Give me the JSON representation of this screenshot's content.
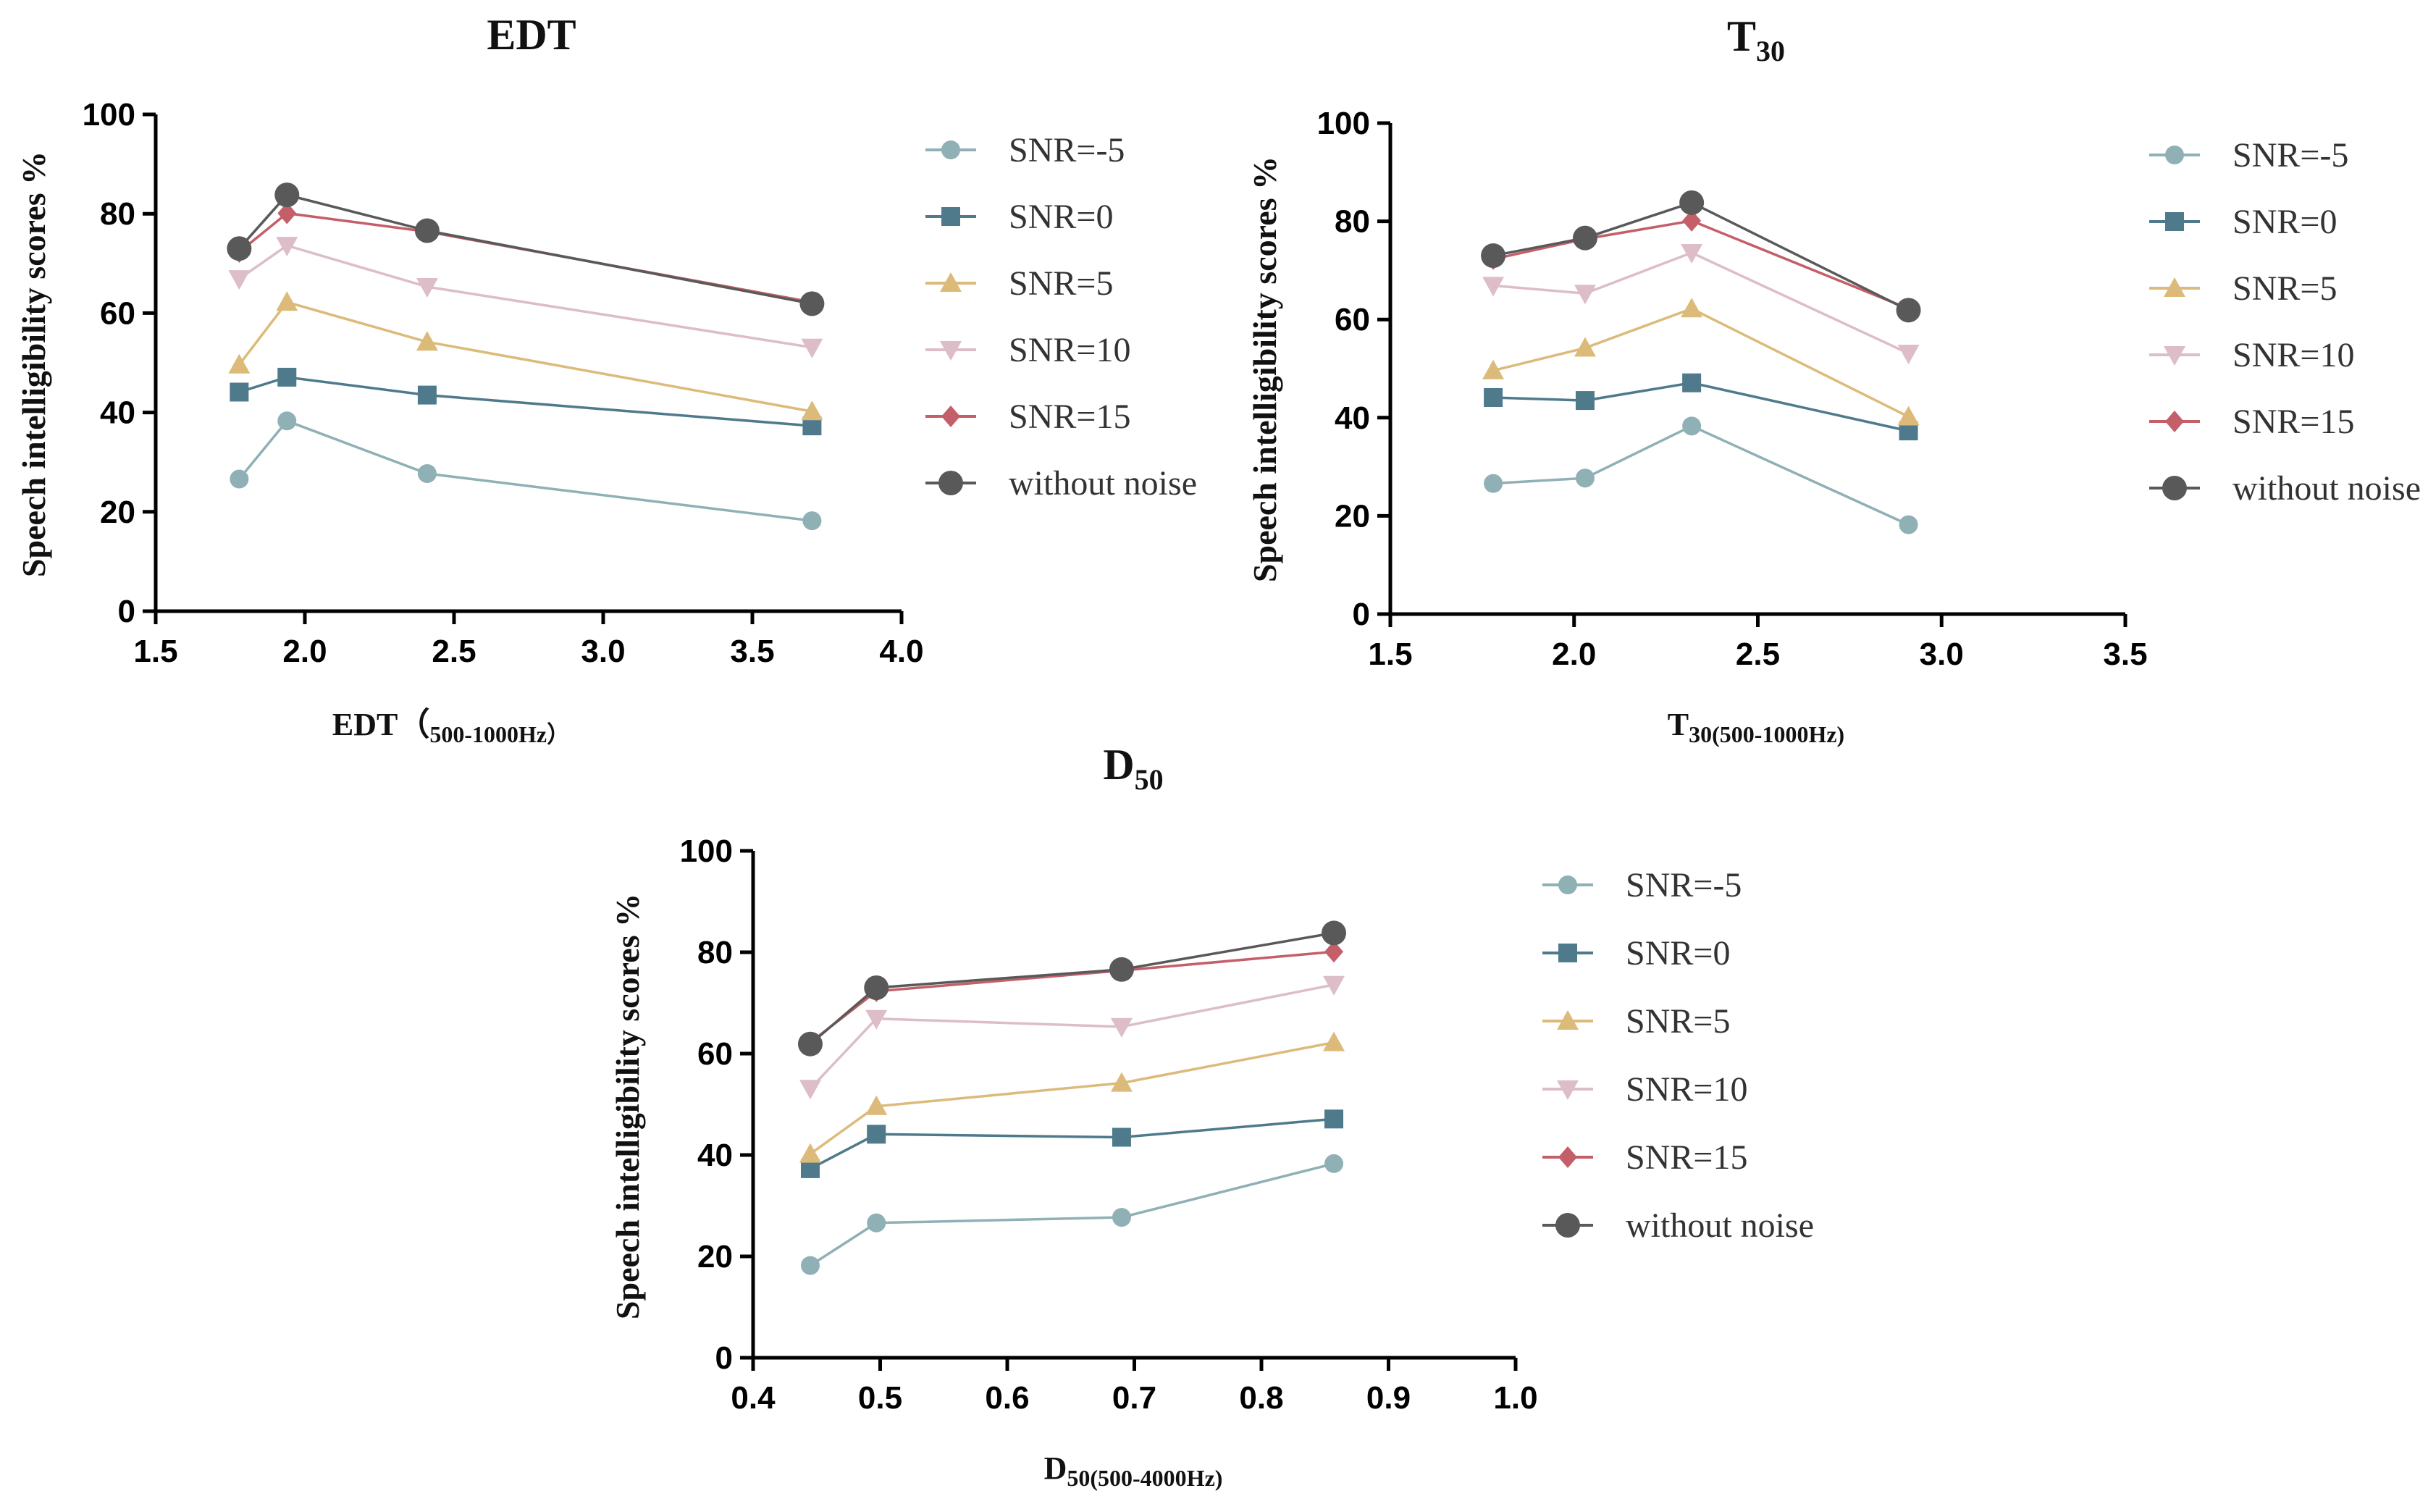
{
  "chart_data": [
    {
      "type": "line",
      "title": "EDT",
      "title_sub": "",
      "xlabel": "EDT（",
      "xlabel_sub": "500-1000Hz）",
      "ylabel": "Speech intelligibility scores %",
      "xlim": [
        1.5,
        4.0
      ],
      "ylim": [
        0,
        100
      ],
      "xticks": [
        "1.5",
        "2.0",
        "2.5",
        "3.0",
        "3.5",
        "4.0"
      ],
      "yticks": [
        "0",
        "20",
        "40",
        "60",
        "80",
        "100"
      ],
      "legend_position": "right",
      "x": [
        1.78,
        1.94,
        2.41,
        3.7
      ],
      "series": [
        {
          "name": "SNR=-5",
          "values": [
            26.6,
            38.3,
            27.7,
            18.2
          ]
        },
        {
          "name": "SNR=0",
          "values": [
            44.1,
            47.1,
            43.5,
            37.3
          ]
        },
        {
          "name": "SNR=5",
          "values": [
            49.6,
            62.2,
            54.2,
            40.2
          ]
        },
        {
          "name": "SNR=10",
          "values": [
            66.9,
            73.6,
            65.3,
            53.1
          ]
        },
        {
          "name": "SNR=15",
          "values": [
            72.3,
            80.1,
            76.4,
            62.2
          ]
        },
        {
          "name": "without noise",
          "values": [
            73.0,
            83.8,
            76.6,
            61.9
          ]
        }
      ]
    },
    {
      "type": "line",
      "title": "T",
      "title_sub": "30",
      "xlabel": "T",
      "xlabel_sub": "30(500-1000Hz)",
      "ylabel": "Speech intelligibility scores %",
      "xlim": [
        1.5,
        3.5
      ],
      "ylim": [
        0,
        100
      ],
      "xticks": [
        "1.5",
        "2.0",
        "2.5",
        "3.0",
        "3.5"
      ],
      "yticks": [
        "0",
        "20",
        "40",
        "60",
        "80",
        "100"
      ],
      "legend_position": "right",
      "x": [
        1.78,
        2.03,
        2.32,
        2.91
      ],
      "series": [
        {
          "name": "SNR=-5",
          "values": [
            26.6,
            27.7,
            38.3,
            18.2
          ]
        },
        {
          "name": "SNR=0",
          "values": [
            44.1,
            43.5,
            47.1,
            37.3
          ]
        },
        {
          "name": "SNR=5",
          "values": [
            49.6,
            54.2,
            62.2,
            40.2
          ]
        },
        {
          "name": "SNR=10",
          "values": [
            66.9,
            65.3,
            73.6,
            53.1
          ]
        },
        {
          "name": "SNR=15",
          "values": [
            72.3,
            76.4,
            80.1,
            62.2
          ]
        },
        {
          "name": "without noise",
          "values": [
            73.0,
            76.6,
            83.8,
            61.9
          ]
        }
      ]
    },
    {
      "type": "line",
      "title": "D",
      "title_sub": "50",
      "xlabel": "D",
      "xlabel_sub": "50(500-4000Hz)",
      "ylabel": "Speech intelligibility scores %",
      "xlim": [
        0.4,
        1.0
      ],
      "ylim": [
        0,
        100
      ],
      "xticks": [
        "0.4",
        "0.5",
        "0.6",
        "0.7",
        "0.8",
        "0.9",
        "1.0"
      ],
      "yticks": [
        "0",
        "20",
        "40",
        "60",
        "80",
        "100"
      ],
      "legend_position": "right",
      "x": [
        0.445,
        0.497,
        0.69,
        0.857
      ],
      "series": [
        {
          "name": "SNR=-5",
          "values": [
            18.2,
            26.6,
            27.7,
            38.3
          ]
        },
        {
          "name": "SNR=0",
          "values": [
            37.3,
            44.1,
            43.5,
            47.1
          ]
        },
        {
          "name": "SNR=5",
          "values": [
            40.2,
            49.6,
            54.2,
            62.2
          ]
        },
        {
          "name": "SNR=10",
          "values": [
            53.1,
            66.9,
            65.3,
            73.6
          ]
        },
        {
          "name": "SNR=15",
          "values": [
            62.2,
            72.3,
            76.4,
            80.1
          ]
        },
        {
          "name": "without noise",
          "values": [
            61.9,
            73.0,
            76.6,
            83.8
          ]
        }
      ]
    }
  ],
  "series_styles": [
    {
      "marker": "circle",
      "color": "#8fb0b5",
      "line": "#8fb0b5"
    },
    {
      "marker": "square",
      "color": "#4e7a8c",
      "line": "#4e7a8c"
    },
    {
      "marker": "triangle-up",
      "color": "#dcbb7a",
      "line": "#dcbb7a"
    },
    {
      "marker": "triangle-down",
      "color": "#dcbdc8",
      "line": "#dcbdc8"
    },
    {
      "marker": "diamond",
      "color": "#c45f6a",
      "line": "#c45f6a"
    },
    {
      "marker": "circle-big",
      "color": "#595959",
      "line": "#595959"
    }
  ]
}
